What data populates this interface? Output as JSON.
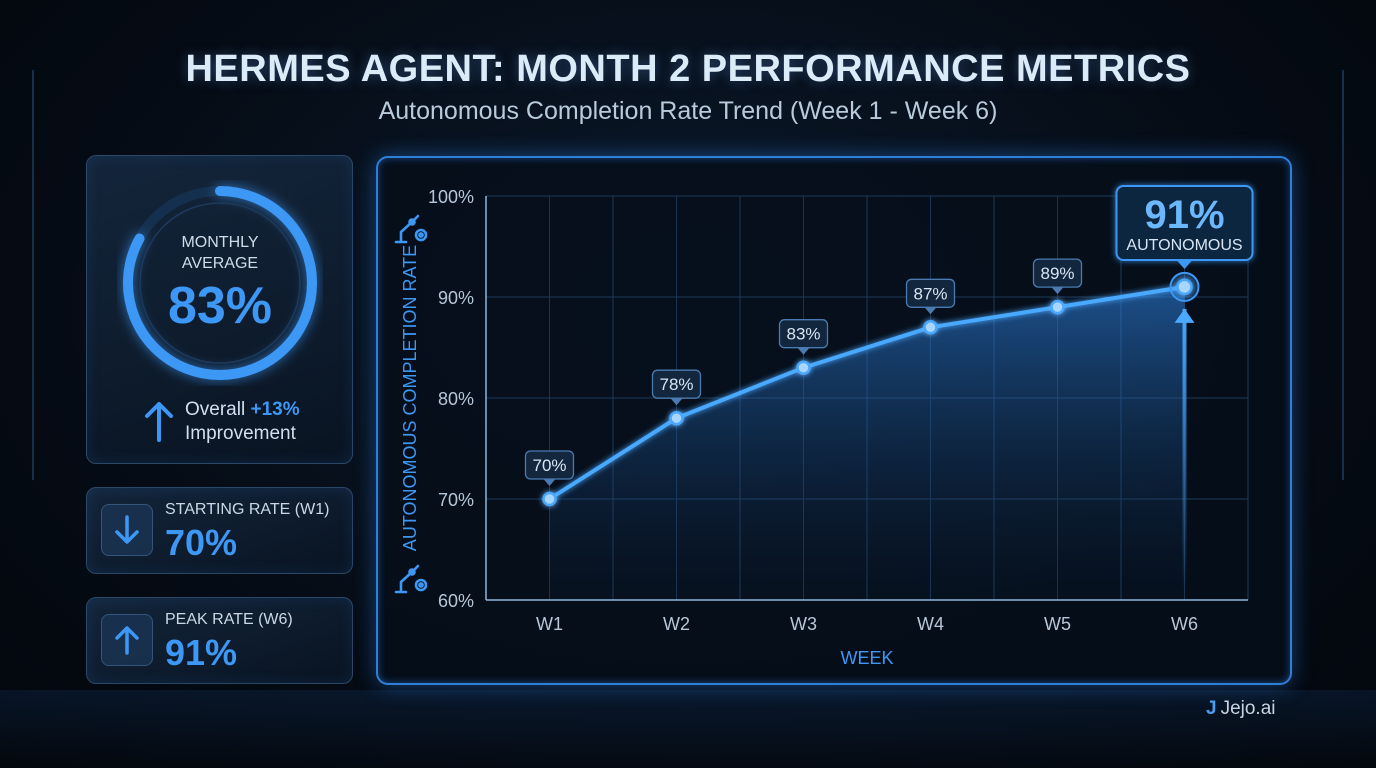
{
  "header": {
    "title": "HERMES AGENT: MONTH 2 PERFORMANCE METRICS",
    "subtitle": "Autonomous Completion Rate Trend (Week 1 - Week 6)"
  },
  "summary": {
    "monthly_average_label": "MONTHLY AVERAGE",
    "monthly_average_value": "83%",
    "monthly_average_fraction": 0.83,
    "improvement_prefix": "Overall",
    "improvement_value": "+13%",
    "improvement_suffix": "Improvement",
    "starting_label": "STARTING RATE (W1)",
    "starting_value": "70%",
    "peak_label": "PEAK RATE (W6)",
    "peak_value": "91%"
  },
  "chart_data": {
    "type": "area",
    "categories": [
      "W1",
      "W2",
      "W3",
      "W4",
      "W5",
      "W6"
    ],
    "values": [
      70,
      78,
      83,
      87,
      89,
      91
    ],
    "data_labels": [
      "70%",
      "78%",
      "83%",
      "87%",
      "89%",
      "91%"
    ],
    "xlabel": "WEEK",
    "ylabel": "AUTONOMOUS COMPLETION RATE",
    "ylim": [
      60,
      100
    ],
    "yticks": [
      60,
      70,
      80,
      90,
      100
    ],
    "ytick_labels": [
      "60%",
      "70%",
      "80%",
      "90%",
      "100%"
    ],
    "grid": true,
    "callout": {
      "value": "91%",
      "label": "AUTONOMOUS"
    }
  },
  "colors": {
    "accent": "#3d97f5",
    "line": "#4aa8ff",
    "panel_border": "#2e7fd8"
  },
  "branding": {
    "logo": "Jejo.ai"
  }
}
